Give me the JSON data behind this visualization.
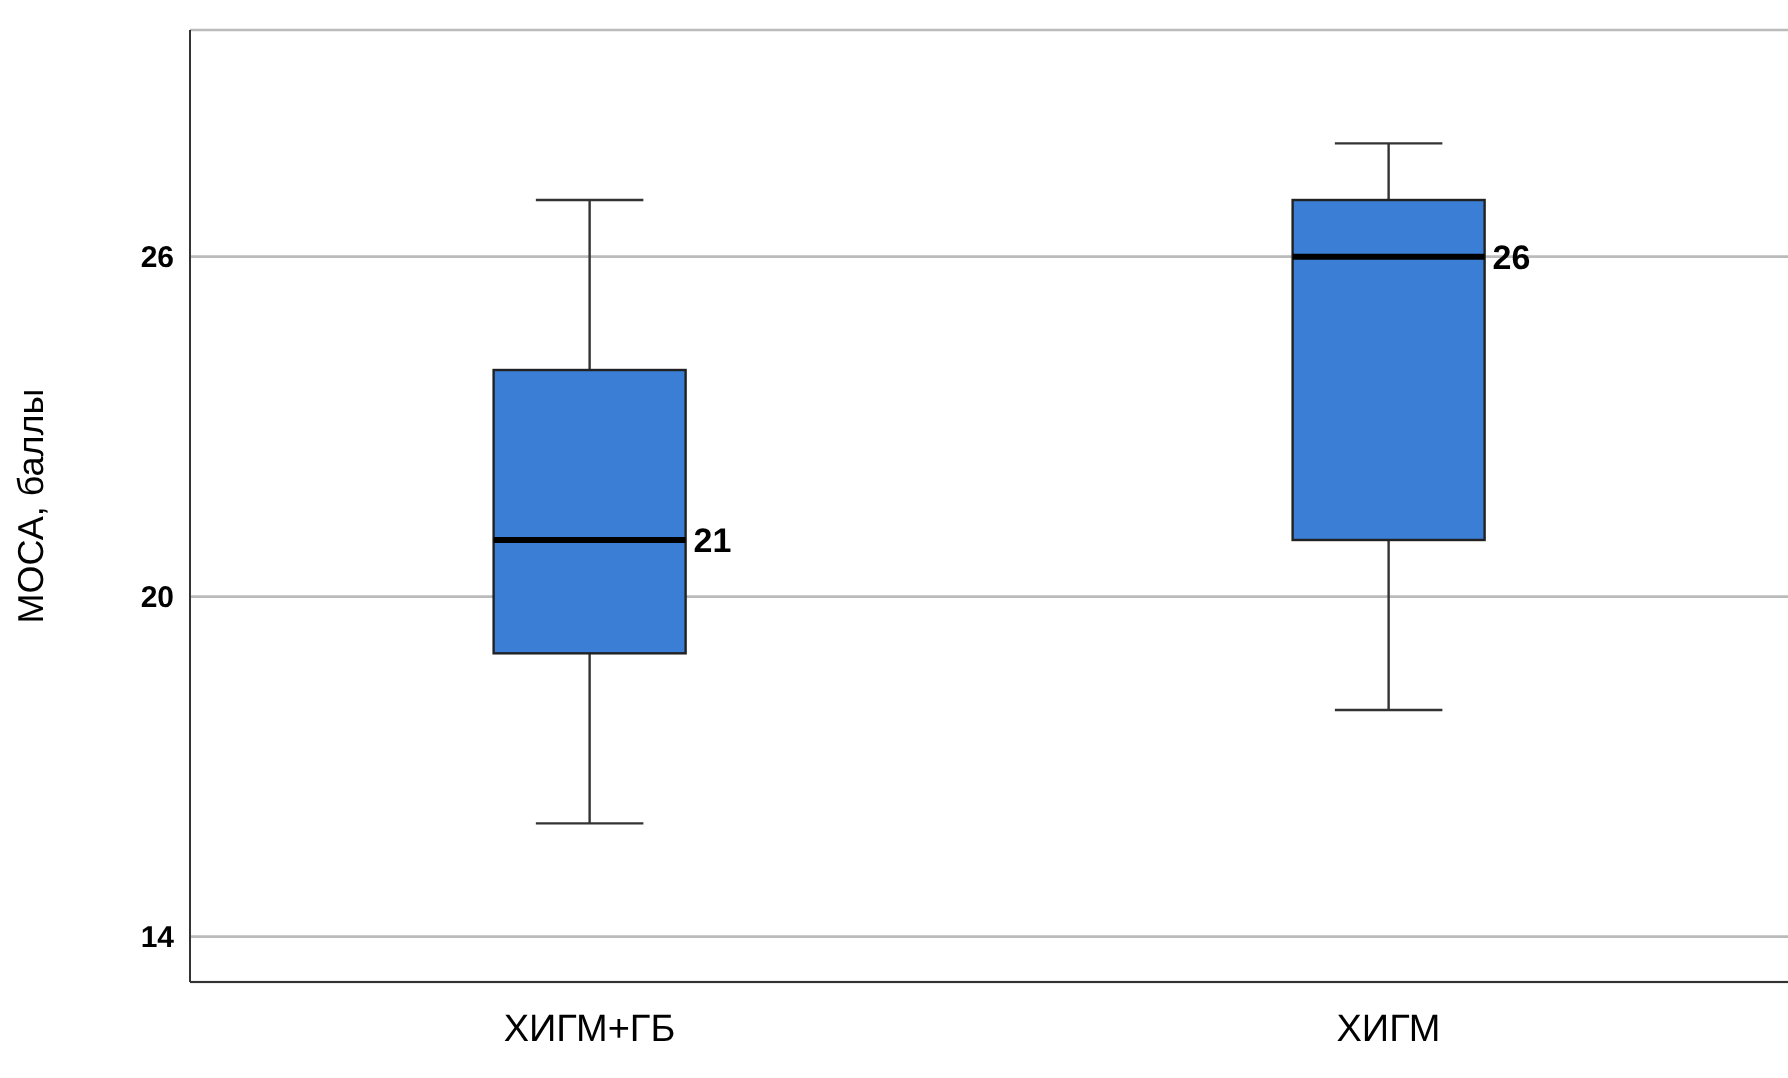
{
  "chart_data": {
    "type": "box",
    "ylabel": "МОСА, баллы",
    "categories": [
      "ХИГМ+ГБ",
      "ХИГМ"
    ],
    "color": "#3a7fd5",
    "boxes": [
      {
        "low": 16,
        "q1": 19,
        "median": 21,
        "q3": 24,
        "high": 27
      },
      {
        "low": 18,
        "q1": 21,
        "median": 26,
        "q3": 27,
        "high": 28
      }
    ],
    "ylim": [
      13.2,
      30
    ],
    "yticks": [
      14,
      20,
      26
    ],
    "grid": "y",
    "annotations": [
      "21",
      "26"
    ]
  }
}
